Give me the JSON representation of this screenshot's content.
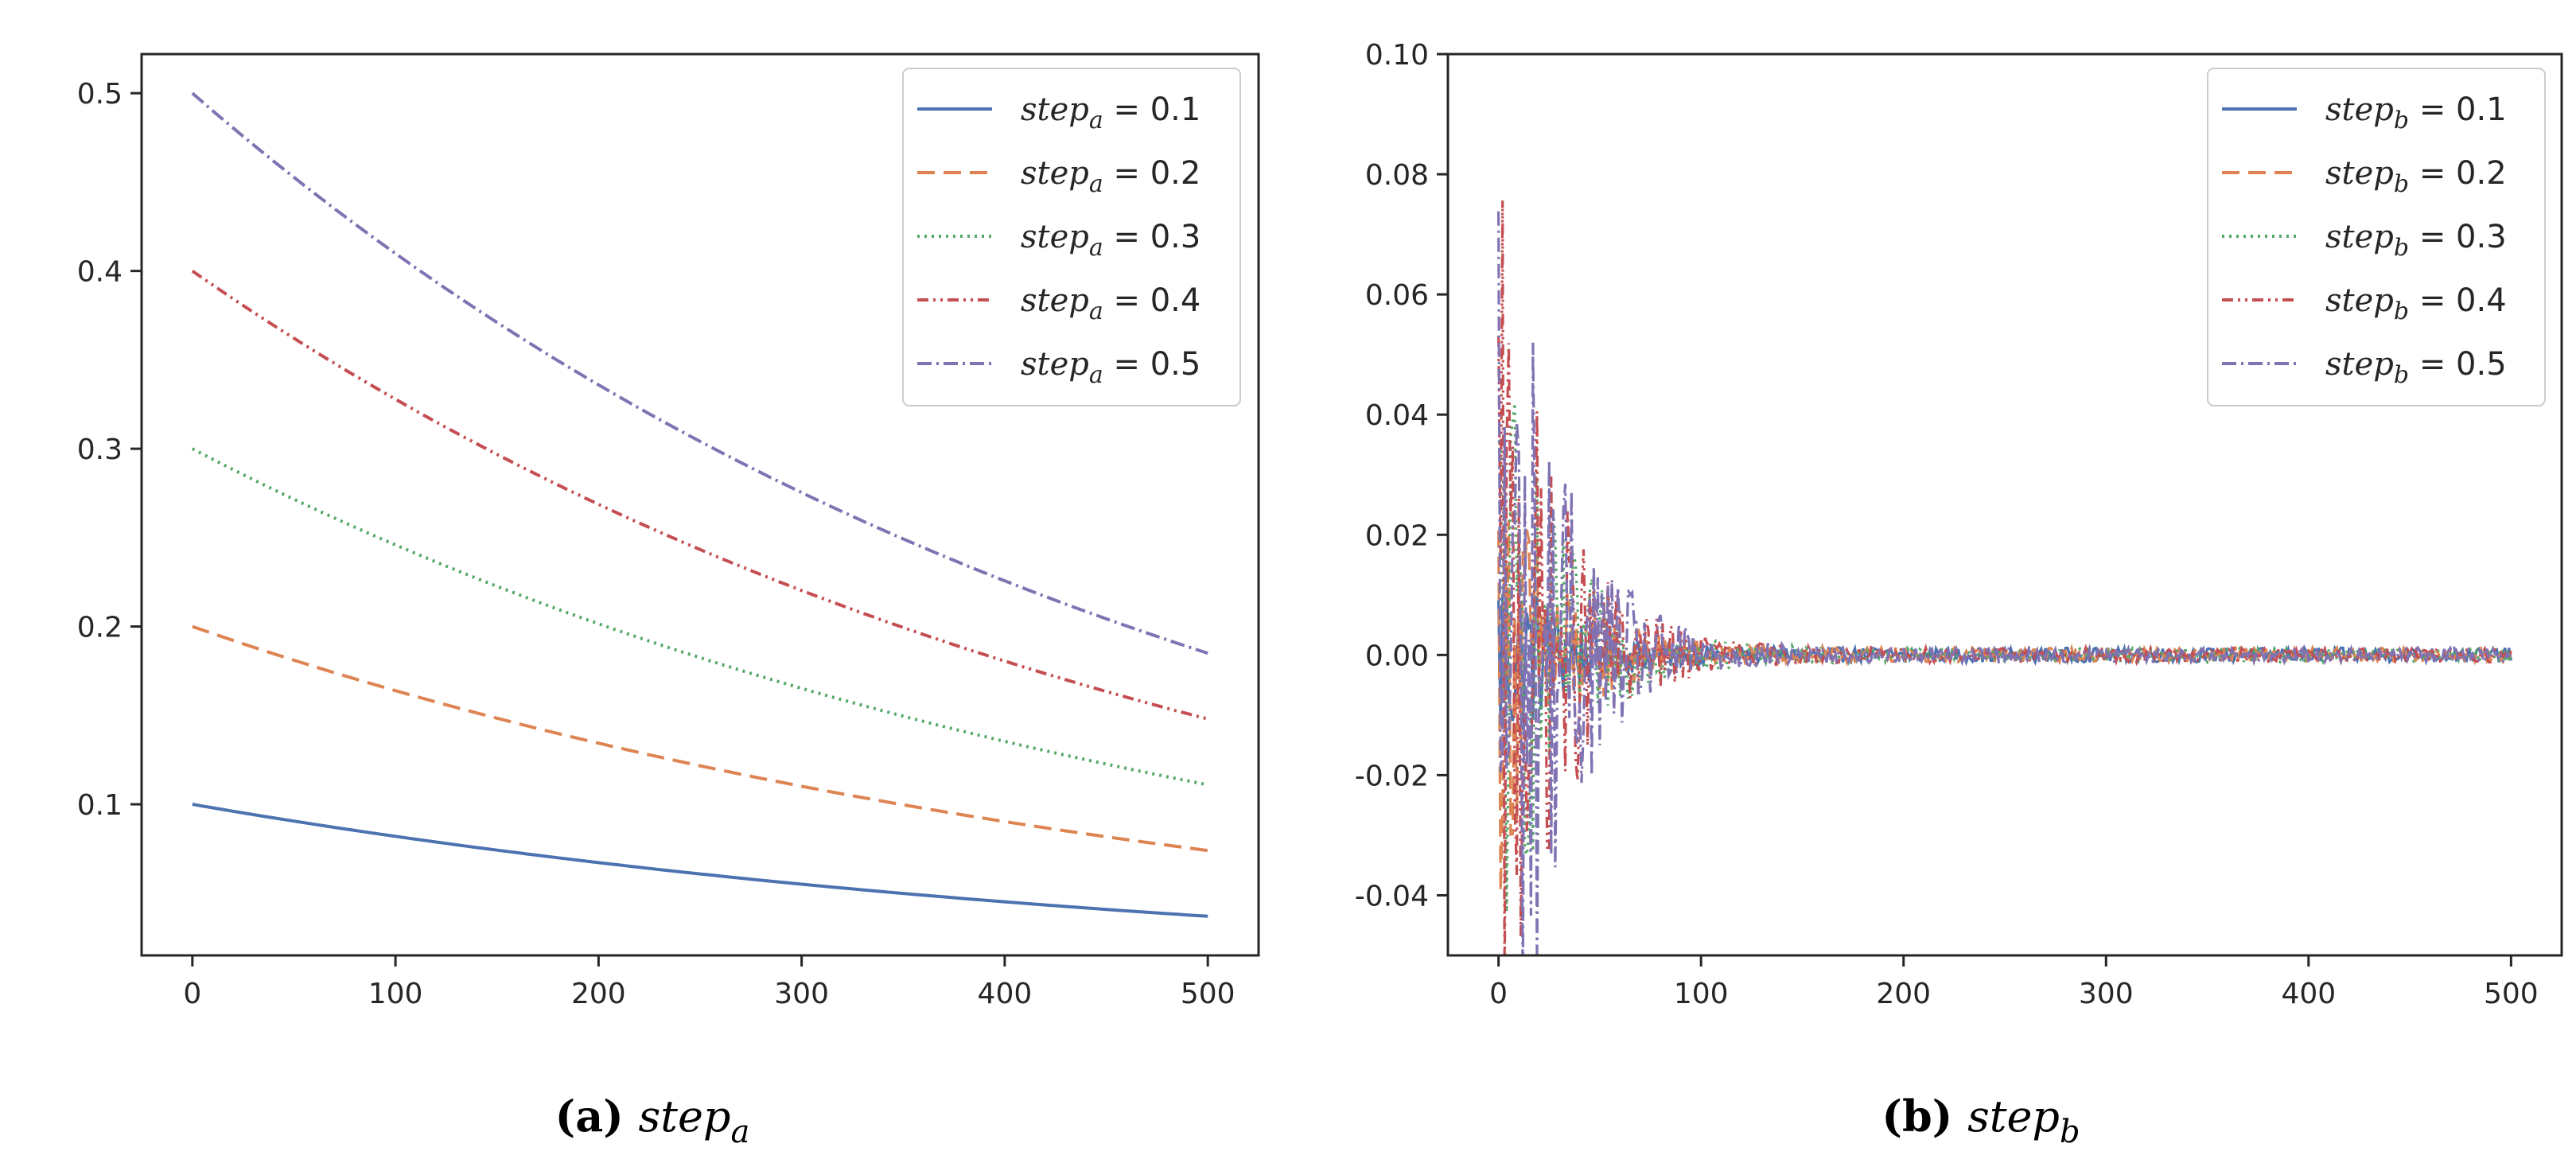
{
  "colors": {
    "blue": "#4c72b0",
    "orange": "#dd8452",
    "green": "#55a868",
    "red": "#c44e52",
    "purple": "#8172b3",
    "axis": "#262626"
  },
  "chart_data": [
    {
      "id": "a",
      "type": "line",
      "caption_label": "(a)",
      "caption_text": "step",
      "caption_sub": "a",
      "x": [
        0,
        500
      ],
      "xticks": [
        0,
        100,
        200,
        300,
        400,
        500
      ],
      "yticks": [
        0.1,
        0.2,
        0.3,
        0.4,
        0.5
      ],
      "ytick_labels": [
        "0.1",
        "0.2",
        "0.3",
        "0.4",
        "0.5"
      ],
      "xlim": [
        -25,
        525
      ],
      "ylim": [
        0.015,
        0.522
      ],
      "legend_position": "top-right",
      "series": [
        {
          "name": "step_a = 0.1",
          "legend_base": "step",
          "legend_sub": "a",
          "legend_value": " = 0.1",
          "start": 0.1,
          "end": 0.037,
          "color": "blue",
          "dash": "solid"
        },
        {
          "name": "step_a = 0.2",
          "legend_base": "step",
          "legend_sub": "a",
          "legend_value": " = 0.2",
          "start": 0.2,
          "end": 0.074,
          "color": "orange",
          "dash": "dashed"
        },
        {
          "name": "step_a = 0.3",
          "legend_base": "step",
          "legend_sub": "a",
          "legend_value": " = 0.3",
          "start": 0.3,
          "end": 0.111,
          "color": "green",
          "dash": "dotted"
        },
        {
          "name": "step_a = 0.4",
          "legend_base": "step",
          "legend_sub": "a",
          "legend_value": " = 0.4",
          "start": 0.4,
          "end": 0.148,
          "color": "red",
          "dash": "dashdotdot"
        },
        {
          "name": "step_a = 0.5",
          "legend_base": "step",
          "legend_sub": "a",
          "legend_value": " = 0.5",
          "start": 0.5,
          "end": 0.185,
          "color": "purple",
          "dash": "dashdot"
        }
      ]
    },
    {
      "id": "b",
      "type": "line",
      "caption_label": "(b)",
      "caption_text": "step",
      "caption_sub": "b",
      "x": [
        0,
        500
      ],
      "xticks": [
        0,
        100,
        200,
        300,
        400,
        500
      ],
      "yticks": [
        -0.04,
        -0.02,
        0.0,
        0.02,
        0.04,
        0.06,
        0.08,
        0.1
      ],
      "ytick_labels": [
        "-0.04",
        "-0.02",
        "0.00",
        "0.02",
        "0.04",
        "0.06",
        "0.08",
        "0.10"
      ],
      "xlim": [
        -25,
        525
      ],
      "ylim": [
        -0.05,
        0.1
      ],
      "legend_position": "top-right",
      "description": "damped oscillations around 0, amplitude ~0.1 near x=0 decaying to ~0.001 by x=500",
      "series": [
        {
          "name": "step_b = 0.1",
          "legend_base": "step",
          "legend_sub": "b",
          "legend_value": " = 0.1",
          "amplitude": 0.02,
          "color": "blue",
          "dash": "solid"
        },
        {
          "name": "step_b = 0.2",
          "legend_base": "step",
          "legend_sub": "b",
          "legend_value": " = 0.2",
          "amplitude": 0.04,
          "color": "orange",
          "dash": "dashed"
        },
        {
          "name": "step_b = 0.3",
          "legend_base": "step",
          "legend_sub": "b",
          "legend_value": " = 0.3",
          "amplitude": 0.06,
          "color": "green",
          "dash": "dotted"
        },
        {
          "name": "step_b = 0.4",
          "legend_base": "step",
          "legend_sub": "b",
          "legend_value": " = 0.4",
          "amplitude": 0.08,
          "color": "red",
          "dash": "dashdotdot"
        },
        {
          "name": "step_b = 0.5",
          "legend_base": "step",
          "legend_sub": "b",
          "legend_value": " = 0.5",
          "amplitude": 0.1,
          "color": "purple",
          "dash": "dashdot"
        }
      ]
    }
  ]
}
